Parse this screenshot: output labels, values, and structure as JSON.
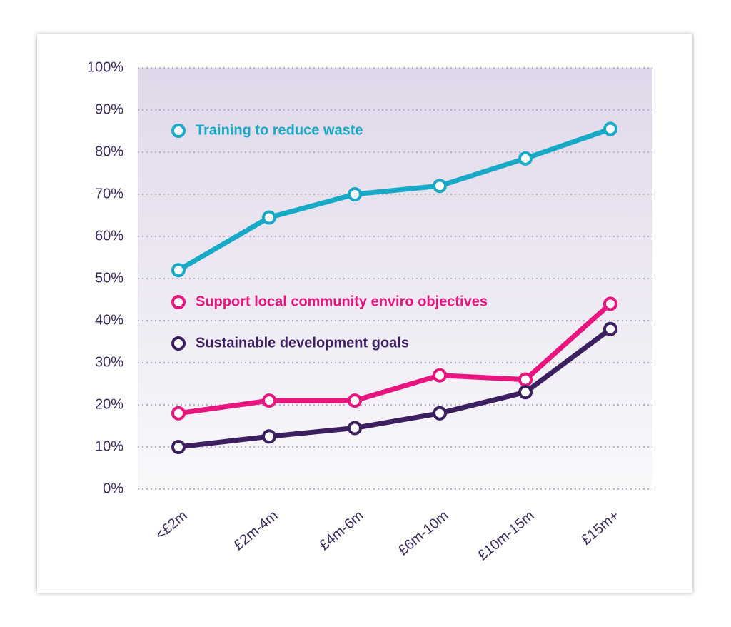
{
  "chart_data": {
    "type": "line",
    "categories": [
      "<£2m",
      "£2m-4m",
      "£4m-6m",
      "£6m-10m",
      "£10m-15m",
      "£15m+"
    ],
    "series": [
      {
        "name": "Training to reduce waste",
        "color": "#17a9c6",
        "values": [
          52,
          64.5,
          70,
          72,
          78.5,
          85.5
        ]
      },
      {
        "name": "Support local community enviro objectives",
        "color": "#e8157f",
        "values": [
          18,
          21,
          21,
          27,
          26,
          44
        ]
      },
      {
        "name": "Sustainable development goals",
        "color": "#3b1f5e",
        "values": [
          10,
          12.5,
          14.5,
          18,
          23,
          38
        ]
      }
    ],
    "ylim": [
      0,
      100
    ],
    "yticks": [
      {
        "value": 0,
        "label": "0%"
      },
      {
        "value": 10,
        "label": "10%"
      },
      {
        "value": 20,
        "label": "20%"
      },
      {
        "value": 30,
        "label": "30%"
      },
      {
        "value": 40,
        "label": "40%"
      },
      {
        "value": 50,
        "label": "50%"
      },
      {
        "value": 60,
        "label": "60%"
      },
      {
        "value": 70,
        "label": "70%"
      },
      {
        "value": 80,
        "label": "80%"
      },
      {
        "value": 90,
        "label": "90%"
      },
      {
        "value": 100,
        "label": "100%"
      }
    ],
    "grid": true
  }
}
